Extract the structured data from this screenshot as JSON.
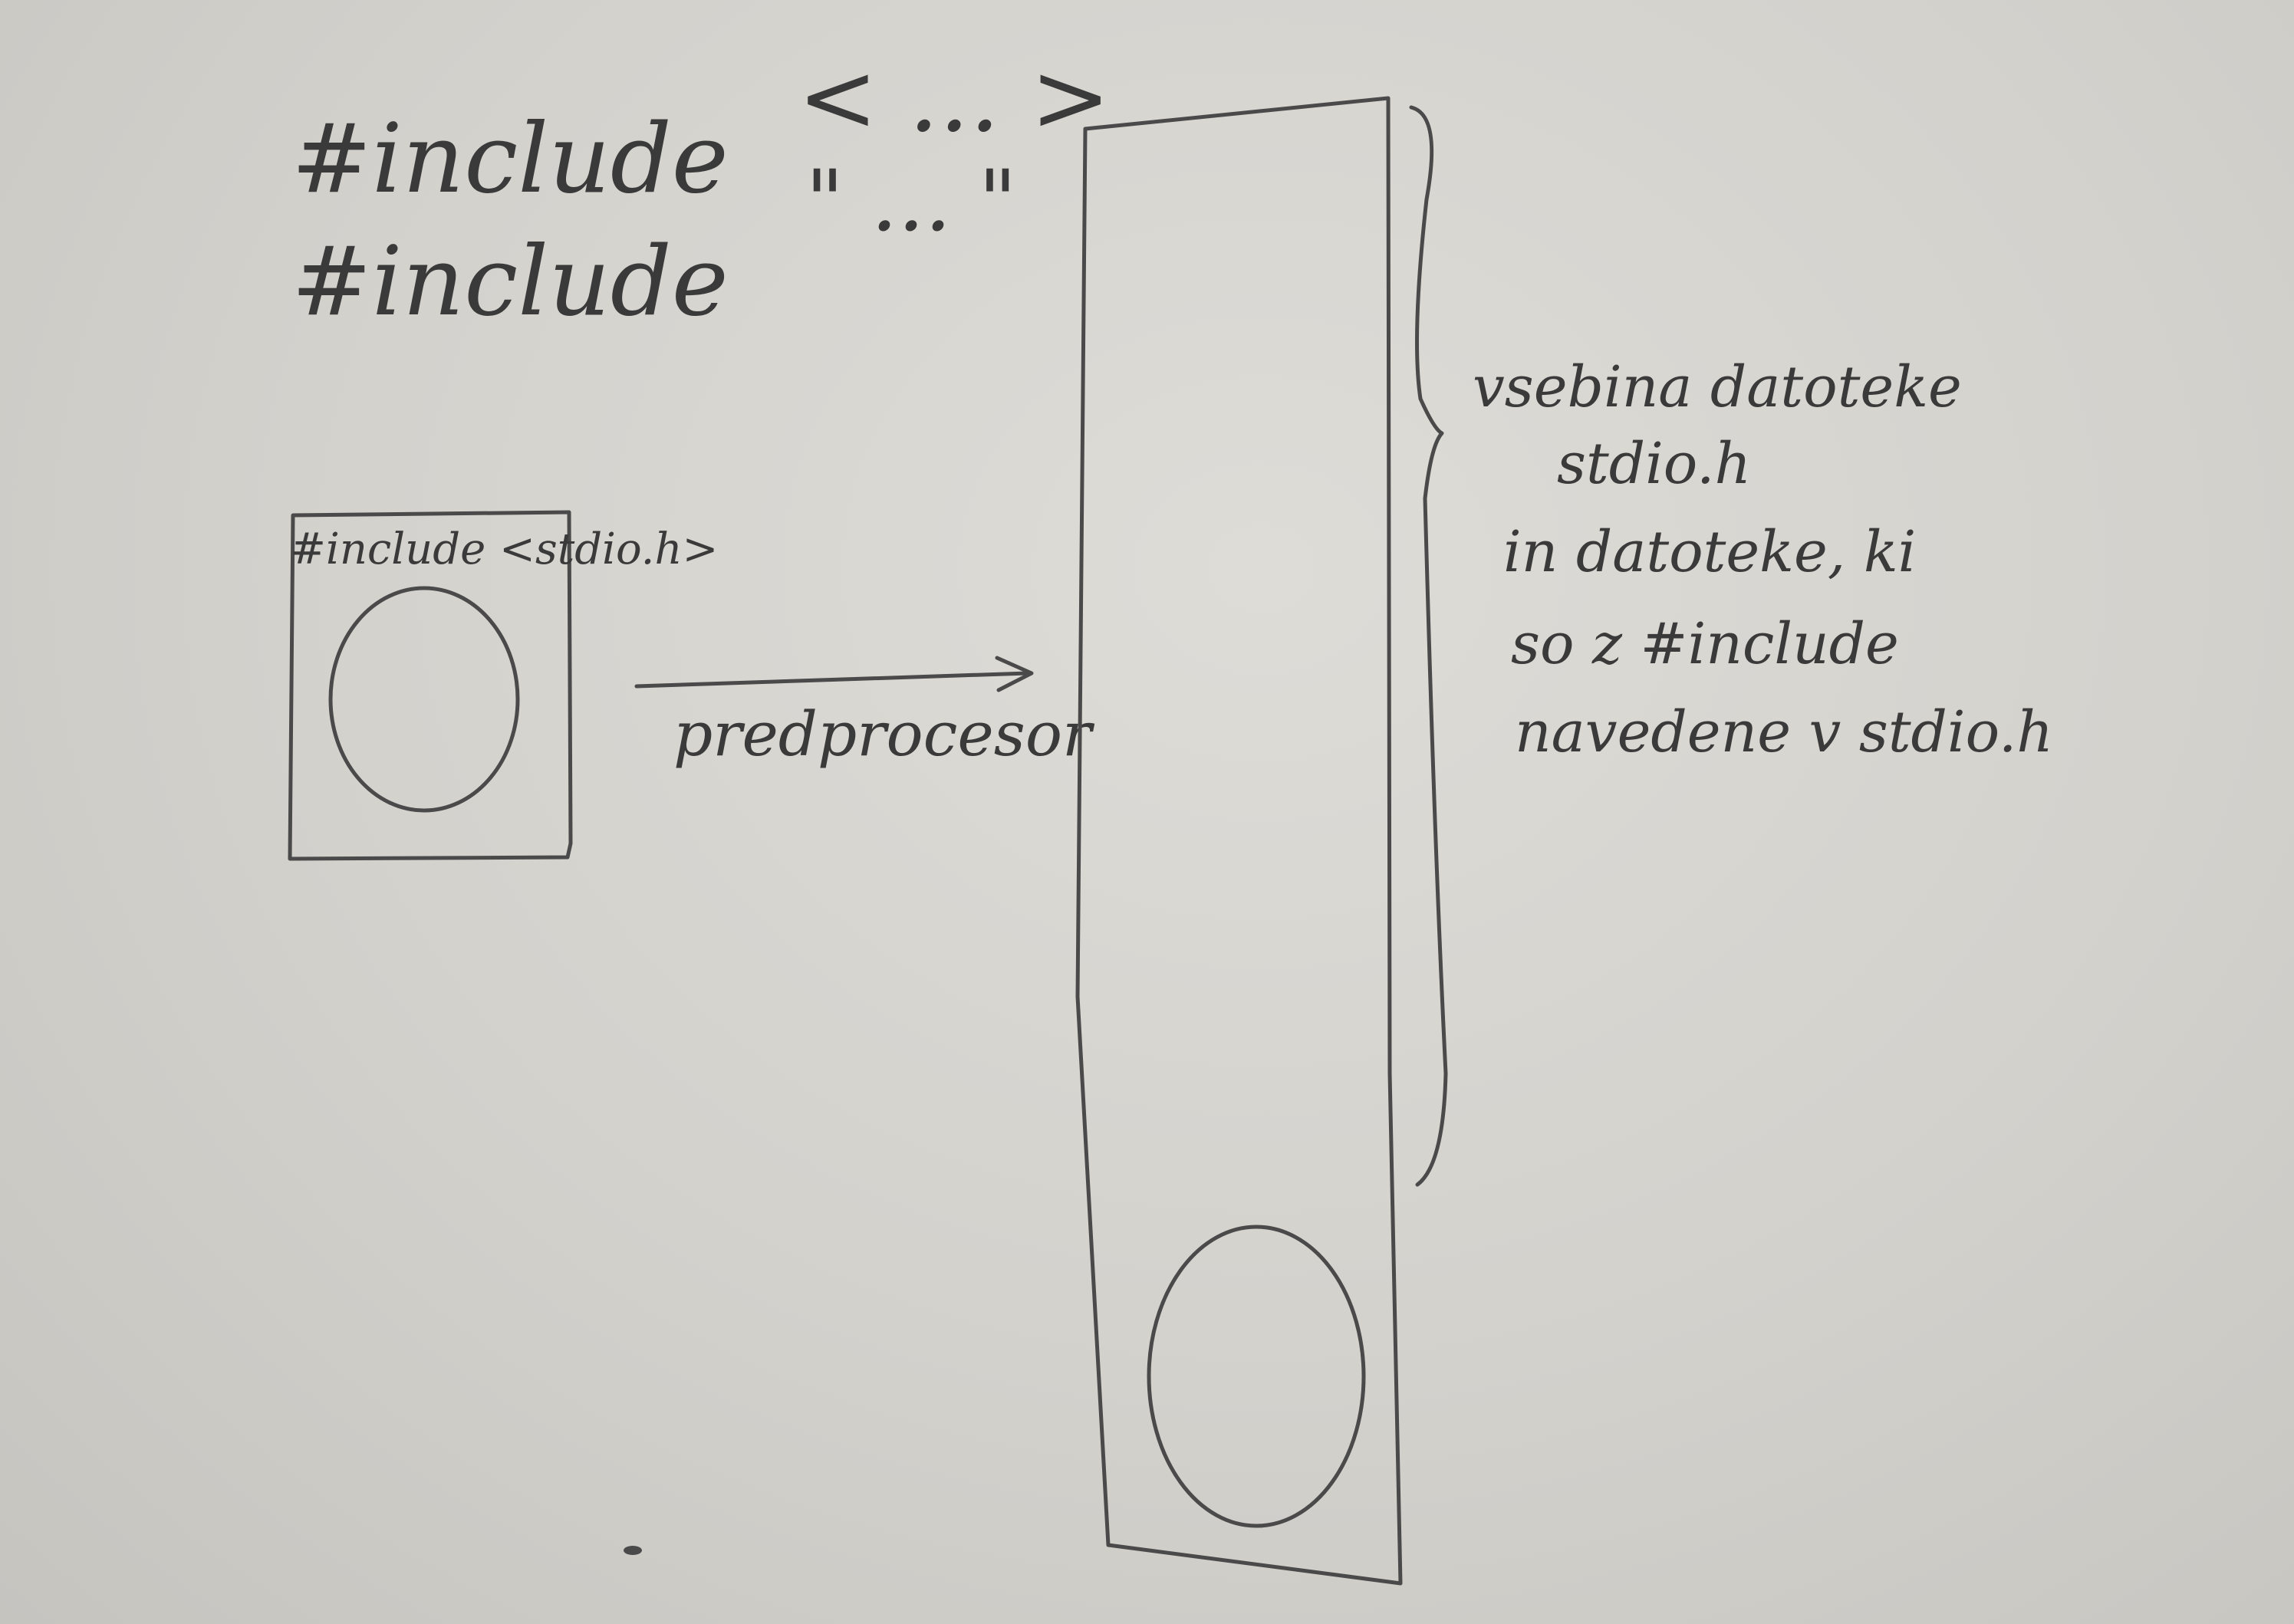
{
  "directives": {
    "line1_keyword": "#include",
    "line1_delims": "< ... >",
    "line2_keyword": "#include",
    "line2_delims": "\" ... \""
  },
  "source_file": {
    "header_line": "#include <stdio.h>"
  },
  "arrow": {
    "label": "predprocesor"
  },
  "annotation": {
    "lines": [
      "vsebina datoteke",
      "stdio.h",
      "in datoteke, ki",
      "so z #include",
      "navedene v stdio.h"
    ]
  }
}
